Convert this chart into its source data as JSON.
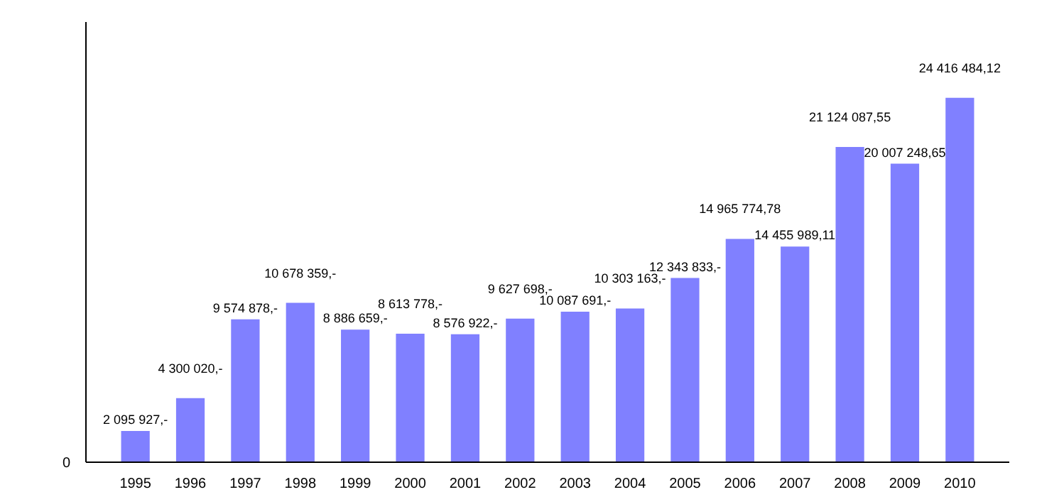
{
  "chart_data": {
    "type": "bar",
    "categories": [
      "1995",
      "1996",
      "1997",
      "1998",
      "1999",
      "2000",
      "2001",
      "2002",
      "2003",
      "2004",
      "2005",
      "2006",
      "2007",
      "2008",
      "2009",
      "2010"
    ],
    "values": [
      2095927,
      4300020,
      9574878,
      10678359,
      8886659,
      8613778,
      8576922,
      9627698,
      10087691,
      10303163,
      12343833,
      14965774.78,
      14455989.11,
      21124087.55,
      20007248.65,
      24416484.12
    ],
    "value_labels": [
      "2 095 927,-",
      "4 300 020,-",
      "9 574 878,-",
      "10 678 359,-",
      "8 886 659,-",
      "8 613 778,-",
      "8 576 922,-",
      "9 627 698,-",
      "10 087 691,-",
      "10 303 163,-",
      "12 343 833,-",
      "14 965 774,78",
      "14 455 989,11",
      "21 124 087,55",
      "20 007 248,65",
      "24 416 484,12"
    ],
    "color": "#8080ff",
    "ylim": [
      0,
      29500000
    ],
    "annotations": [
      "0"
    ],
    "grid": false
  }
}
